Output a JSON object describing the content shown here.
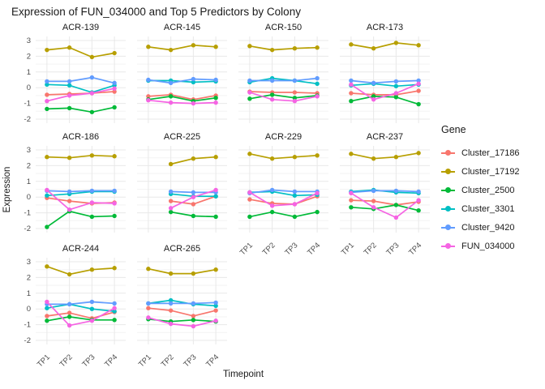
{
  "page": {
    "title": "Expression of FUN_034000 and Top 5 Predictors by Colony"
  },
  "legend": {
    "title": "Gene",
    "items": [
      {
        "label": "Cluster_17186",
        "color": "#F8766D"
      },
      {
        "label": "Cluster_17192",
        "color": "#B79F00"
      },
      {
        "label": "Cluster_2500",
        "color": "#00BA38"
      },
      {
        "label": "Cluster_3301",
        "color": "#00BFC4"
      },
      {
        "label": "Cluster_9420",
        "color": "#619CFF"
      },
      {
        "label": "FUN_034000",
        "color": "#F564E3"
      }
    ]
  },
  "chart_data": {
    "type": "line",
    "title": "Expression of FUN_034000 and Top 5 Predictors by Colony",
    "xlabel": "Timepoint",
    "ylabel": "Expression",
    "x_categories": [
      "TP1",
      "TP2",
      "TP3",
      "TP4"
    ],
    "ylim": [
      -2,
      3
    ],
    "yticks": [
      3,
      2,
      1,
      0,
      -1,
      -2
    ],
    "grid": "major and minor horizontal gridlines, major vertical gridlines, theme_minimal white background",
    "legend_position": "right",
    "legend_title": "Gene",
    "series_order": [
      "Cluster_17186",
      "Cluster_17192",
      "Cluster_2500",
      "Cluster_3301",
      "Cluster_9420",
      "FUN_034000"
    ],
    "series_colors": {
      "Cluster_17186": "#F8766D",
      "Cluster_17192": "#B79F00",
      "Cluster_2500": "#00BA38",
      "Cluster_3301": "#00BFC4",
      "Cluster_9420": "#619CFF",
      "FUN_034000": "#F564E3"
    },
    "facets": [
      {
        "name": "ACR-139",
        "series": {
          "Cluster_17186": [
            -0.45,
            -0.4,
            -0.35,
            -0.25
          ],
          "Cluster_17192": [
            2.4,
            2.55,
            1.95,
            2.2
          ],
          "Cluster_2500": [
            -1.35,
            -1.3,
            -1.55,
            -1.25
          ],
          "Cluster_3301": [
            0.2,
            0.15,
            -0.3,
            0.15
          ],
          "Cluster_9420": [
            0.4,
            0.4,
            0.65,
            0.3
          ],
          "FUN_034000": [
            -0.85,
            -0.5,
            -0.35,
            -0.05
          ]
        }
      },
      {
        "name": "ACR-145",
        "series": {
          "Cluster_17186": [
            -0.55,
            -0.45,
            -0.75,
            -0.5
          ],
          "Cluster_17192": [
            2.6,
            2.4,
            2.7,
            2.6
          ],
          "Cluster_2500": [
            -0.75,
            -0.55,
            -0.85,
            -0.65
          ],
          "Cluster_3301": [
            0.45,
            0.45,
            0.35,
            0.4
          ],
          "Cluster_9420": [
            0.5,
            0.3,
            0.55,
            0.5
          ],
          "FUN_034000": [
            -0.8,
            -0.95,
            -1.0,
            -0.95
          ]
        }
      },
      {
        "name": "ACR-150",
        "series": {
          "Cluster_17186": [
            -0.25,
            -0.3,
            -0.3,
            -0.35
          ],
          "Cluster_17192": [
            2.65,
            2.4,
            2.5,
            2.55
          ],
          "Cluster_2500": [
            -0.7,
            -0.45,
            -0.65,
            -0.5
          ],
          "Cluster_3301": [
            0.35,
            0.6,
            0.45,
            0.25
          ],
          "Cluster_9420": [
            0.45,
            0.45,
            0.45,
            0.6
          ],
          "FUN_034000": [
            -0.3,
            -0.75,
            -0.85,
            -0.55
          ]
        }
      },
      {
        "name": "ACR-173",
        "series": {
          "Cluster_17186": [
            -0.35,
            -0.45,
            -0.45,
            -0.2
          ],
          "Cluster_17192": [
            2.75,
            2.5,
            2.85,
            2.7
          ],
          "Cluster_2500": [
            -0.85,
            -0.55,
            -0.6,
            -1.05
          ],
          "Cluster_3301": [
            0.15,
            0.25,
            0.1,
            0.2
          ],
          "Cluster_9420": [
            0.45,
            0.3,
            0.4,
            0.45
          ],
          "FUN_034000": [
            0.2,
            -0.75,
            -0.35,
            0.25
          ]
        }
      },
      {
        "name": "ACR-186",
        "series": {
          "Cluster_17186": [
            -0.05,
            -0.25,
            -0.4,
            -0.35
          ],
          "Cluster_17192": [
            2.55,
            2.5,
            2.65,
            2.6
          ],
          "Cluster_2500": [
            -1.9,
            -0.9,
            -1.25,
            -1.2
          ],
          "Cluster_3301": [
            0.1,
            0.2,
            0.35,
            0.35
          ],
          "Cluster_9420": [
            0.4,
            0.35,
            0.4,
            0.4
          ],
          "FUN_034000": [
            0.45,
            -0.8,
            -0.35,
            -0.4
          ]
        }
      },
      {
        "name": "ACR-225",
        "series": {
          "Cluster_17186": [
            null,
            -0.25,
            -0.45,
            0.05
          ],
          "Cluster_17192": [
            null,
            2.1,
            2.45,
            2.55
          ],
          "Cluster_2500": [
            null,
            -0.95,
            -1.2,
            -1.25
          ],
          "Cluster_3301": [
            null,
            0.2,
            0.05,
            0.05
          ],
          "Cluster_9420": [
            null,
            0.35,
            0.3,
            0.3
          ],
          "FUN_034000": [
            null,
            -0.7,
            0.0,
            0.45
          ]
        }
      },
      {
        "name": "ACR-229",
        "series": {
          "Cluster_17186": [
            -0.15,
            -0.4,
            -0.45,
            0.05
          ],
          "Cluster_17192": [
            2.75,
            2.45,
            2.55,
            2.65
          ],
          "Cluster_2500": [
            -1.25,
            -0.95,
            -1.25,
            -0.95
          ],
          "Cluster_3301": [
            0.3,
            0.35,
            0.1,
            0.15
          ],
          "Cluster_9420": [
            0.25,
            0.45,
            0.35,
            0.35
          ],
          "FUN_034000": [
            0.3,
            -0.55,
            -0.45,
            0.25
          ]
        }
      },
      {
        "name": "ACR-237",
        "series": {
          "Cluster_17186": [
            -0.2,
            -0.25,
            -0.5,
            -0.3
          ],
          "Cluster_17192": [
            2.75,
            2.45,
            2.55,
            2.8
          ],
          "Cluster_2500": [
            -0.65,
            -0.75,
            -0.5,
            -0.85
          ],
          "Cluster_3301": [
            0.35,
            0.45,
            0.3,
            0.25
          ],
          "Cluster_9420": [
            0.3,
            0.4,
            0.4,
            0.35
          ],
          "FUN_034000": [
            0.25,
            -0.65,
            -1.3,
            -0.2
          ]
        }
      },
      {
        "name": "ACR-244",
        "series": {
          "Cluster_17186": [
            -0.45,
            -0.25,
            -0.6,
            -0.2
          ],
          "Cluster_17192": [
            2.7,
            2.2,
            2.5,
            2.6
          ],
          "Cluster_2500": [
            -0.75,
            -0.5,
            -0.7,
            -0.7
          ],
          "Cluster_3301": [
            0.05,
            0.3,
            0.0,
            -0.15
          ],
          "Cluster_9420": [
            0.3,
            0.3,
            0.45,
            0.35
          ],
          "FUN_034000": [
            0.45,
            -1.05,
            -0.75,
            0.05
          ]
        }
      },
      {
        "name": "ACR-265",
        "series": {
          "Cluster_17186": [
            0.05,
            -0.1,
            -0.45,
            -0.1
          ],
          "Cluster_17192": [
            2.55,
            2.25,
            2.25,
            2.5
          ],
          "Cluster_2500": [
            -0.65,
            -0.8,
            -0.7,
            -0.8
          ],
          "Cluster_3301": [
            0.35,
            0.55,
            0.3,
            0.2
          ],
          "Cluster_9420": [
            0.35,
            0.35,
            0.35,
            0.4
          ],
          "FUN_034000": [
            -0.55,
            -0.95,
            -1.1,
            -0.75
          ]
        }
      }
    ]
  }
}
